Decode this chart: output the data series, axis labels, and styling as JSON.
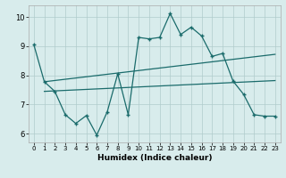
{
  "xlabel": "Humidex (Indice chaleur)",
  "bg_color": "#d8ecec",
  "line_color": "#1a6b6b",
  "grid_color": "#b0cccc",
  "xlim": [
    -0.5,
    23.5
  ],
  "ylim": [
    5.7,
    10.4
  ],
  "xticks": [
    0,
    1,
    2,
    3,
    4,
    5,
    6,
    7,
    8,
    9,
    10,
    11,
    12,
    13,
    14,
    15,
    16,
    17,
    18,
    19,
    20,
    21,
    22,
    23
  ],
  "yticks": [
    6,
    7,
    8,
    9,
    10
  ],
  "main_line_x": [
    0,
    1,
    2,
    3,
    4,
    5,
    6,
    7,
    8,
    9,
    10,
    11,
    12,
    13,
    14,
    15,
    16,
    17,
    18,
    19,
    20,
    21,
    22,
    23
  ],
  "main_line_y": [
    9.05,
    7.78,
    7.45,
    6.65,
    6.35,
    6.62,
    5.95,
    6.75,
    8.05,
    6.65,
    9.3,
    9.25,
    9.3,
    10.12,
    9.4,
    9.65,
    9.35,
    8.65,
    8.75,
    7.8,
    7.35,
    6.65,
    6.6,
    6.6
  ],
  "upper_trend_x": [
    1,
    23
  ],
  "upper_trend_y": [
    7.78,
    8.72
  ],
  "lower_trend_x": [
    1,
    23
  ],
  "lower_trend_y": [
    7.45,
    7.82
  ]
}
